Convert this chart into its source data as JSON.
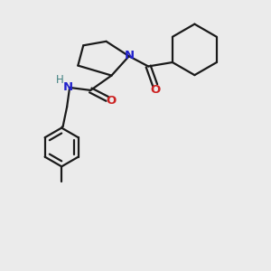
{
  "bg_color": "#ebebeb",
  "bond_color": "#1a1a1a",
  "N_color": "#2222cc",
  "O_color": "#cc2222",
  "H_color": "#408080",
  "line_width": 1.6,
  "figsize": [
    3.0,
    3.0
  ],
  "dpi": 100,
  "xlim": [
    0,
    10
  ],
  "ylim": [
    0,
    10
  ]
}
